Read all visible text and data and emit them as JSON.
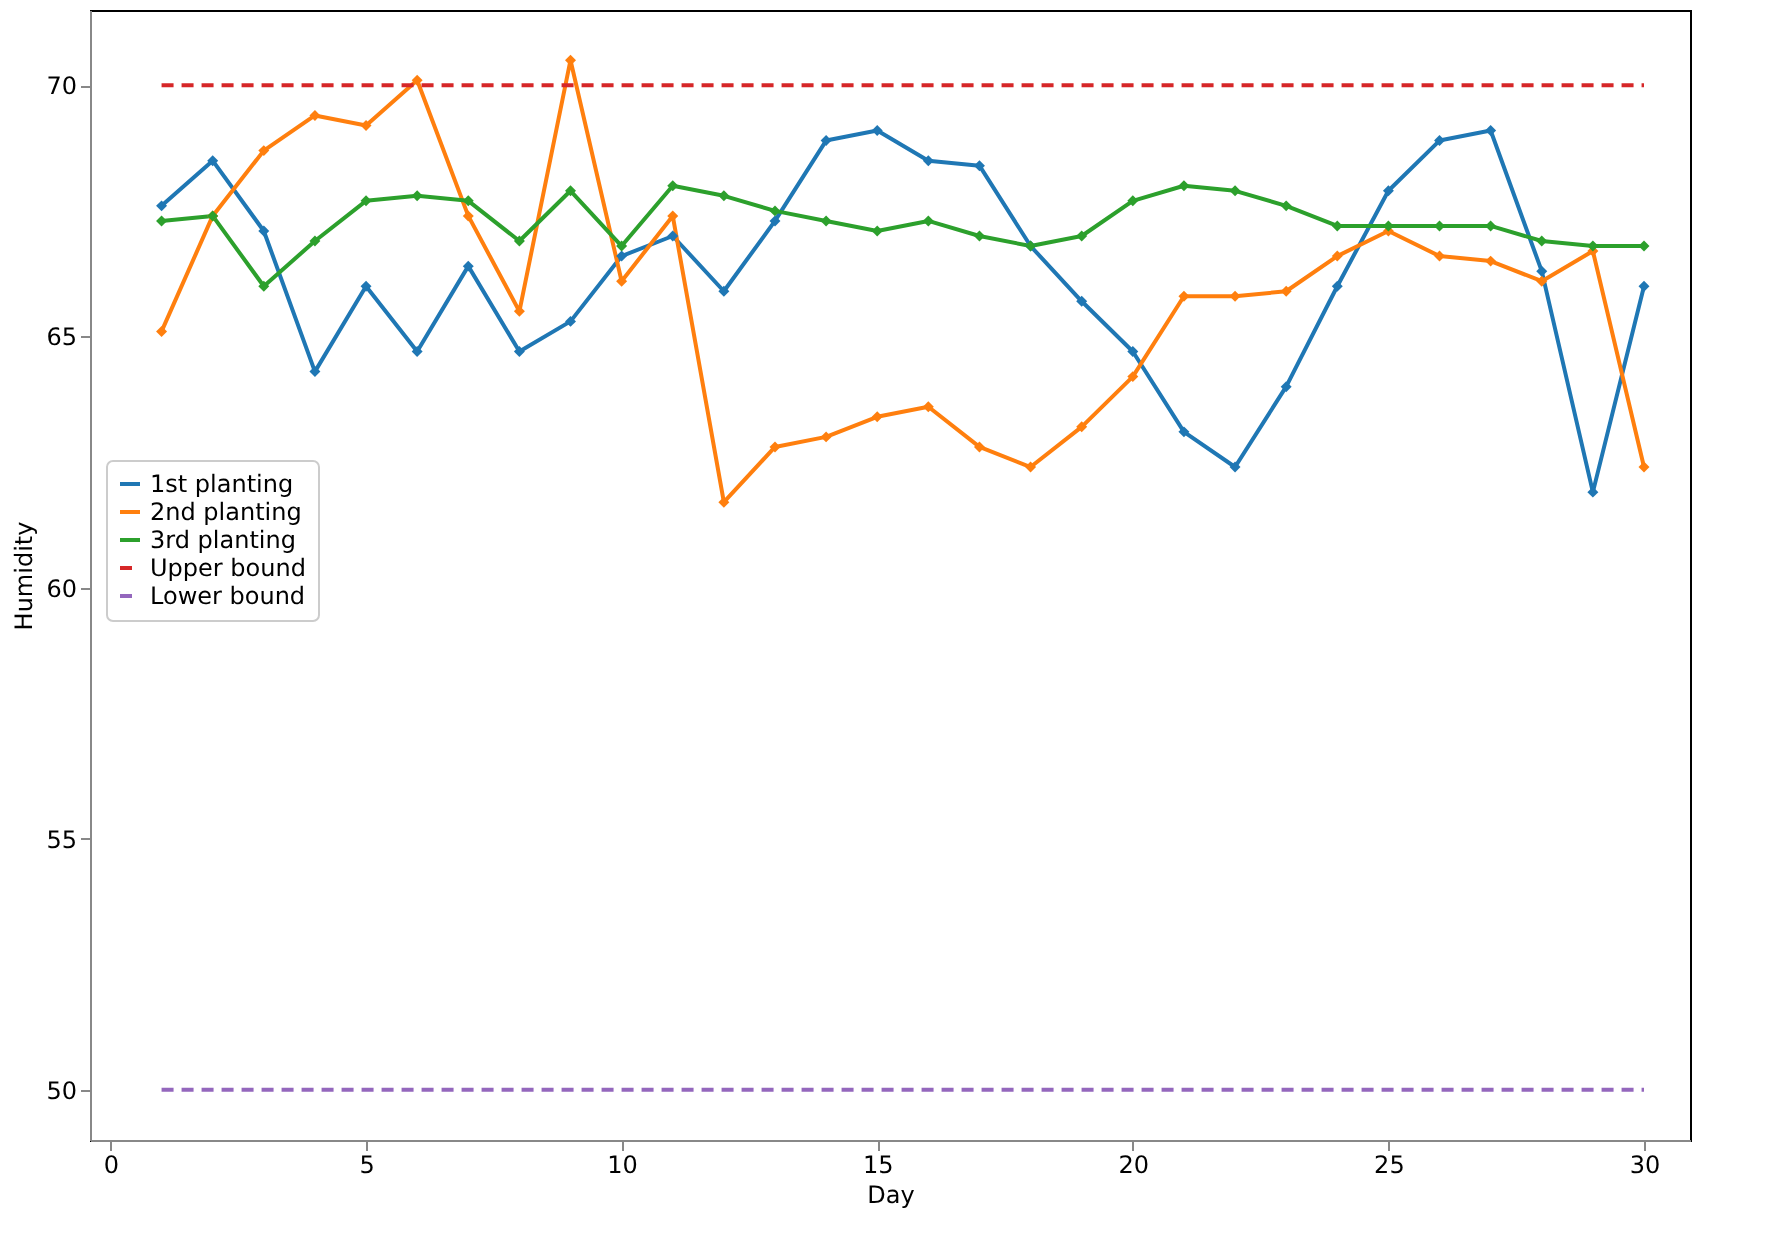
{
  "chart_data": {
    "type": "line",
    "xlabel": "Day",
    "ylabel": "Humidity",
    "x": [
      1,
      2,
      3,
      4,
      5,
      6,
      7,
      8,
      9,
      10,
      11,
      12,
      13,
      14,
      15,
      16,
      17,
      18,
      19,
      20,
      21,
      22,
      23,
      24,
      25,
      26,
      27,
      28,
      29,
      30
    ],
    "xlim": [
      -0.4,
      30.9
    ],
    "xticks": [
      0,
      5,
      10,
      15,
      20,
      25,
      30
    ],
    "ylim": [
      49.0,
      71.5
    ],
    "yticks": [
      50,
      55,
      60,
      65,
      70
    ],
    "grid": false,
    "legend": "left",
    "marker": "diamond",
    "line_style": "solid",
    "series": [
      {
        "name": "1st planting",
        "color": "#1f77b4",
        "values": [
          67.6,
          68.5,
          67.1,
          64.3,
          66.0,
          64.7,
          66.4,
          64.7,
          65.3,
          66.6,
          67.0,
          65.9,
          67.3,
          68.9,
          69.1,
          68.5,
          68.4,
          66.8,
          65.7,
          64.7,
          63.1,
          62.4,
          64.0,
          66.0,
          67.9,
          68.9,
          69.1,
          66.3,
          61.9,
          66.0
        ]
      },
      {
        "name": "2nd planting",
        "color": "#ff7f0e",
        "values": [
          65.1,
          67.4,
          68.7,
          69.4,
          69.2,
          70.1,
          67.4,
          65.5,
          70.5,
          66.1,
          67.4,
          61.7,
          62.8,
          63.0,
          63.4,
          63.6,
          62.8,
          62.4,
          63.2,
          64.2,
          65.8,
          65.8,
          65.9,
          66.6,
          67.1,
          66.6,
          66.5,
          66.1,
          66.7,
          62.4
        ]
      },
      {
        "name": "3rd planting",
        "color": "#2ca02c",
        "values": [
          67.3,
          67.4,
          66.0,
          66.9,
          67.7,
          67.8,
          67.7,
          66.9,
          67.9,
          66.8,
          68.0,
          67.8,
          67.5,
          67.3,
          67.1,
          67.3,
          67.0,
          66.8,
          67.0,
          67.7,
          68.0,
          67.9,
          67.6,
          67.2,
          67.2,
          67.2,
          67.2,
          66.9,
          66.8,
          66.8
        ]
      },
      {
        "name": "Upper bound",
        "color": "#d62728",
        "type": "line",
        "line_style": "dashed",
        "marker": "none",
        "values": [
          70,
          70,
          70,
          70,
          70,
          70,
          70,
          70,
          70,
          70,
          70,
          70,
          70,
          70,
          70,
          70,
          70,
          70,
          70,
          70,
          70,
          70,
          70,
          70,
          70,
          70,
          70,
          70,
          70,
          70
        ]
      },
      {
        "name": "Lower bound",
        "color": "#9467bd",
        "type": "line",
        "line_style": "dashed",
        "marker": "none",
        "values": [
          50,
          50,
          50,
          50,
          50,
          50,
          50,
          50,
          50,
          50,
          50,
          50,
          50,
          50,
          50,
          50,
          50,
          50,
          50,
          50,
          50,
          50,
          50,
          50,
          50,
          50,
          50,
          50,
          50,
          50
        ]
      }
    ]
  }
}
